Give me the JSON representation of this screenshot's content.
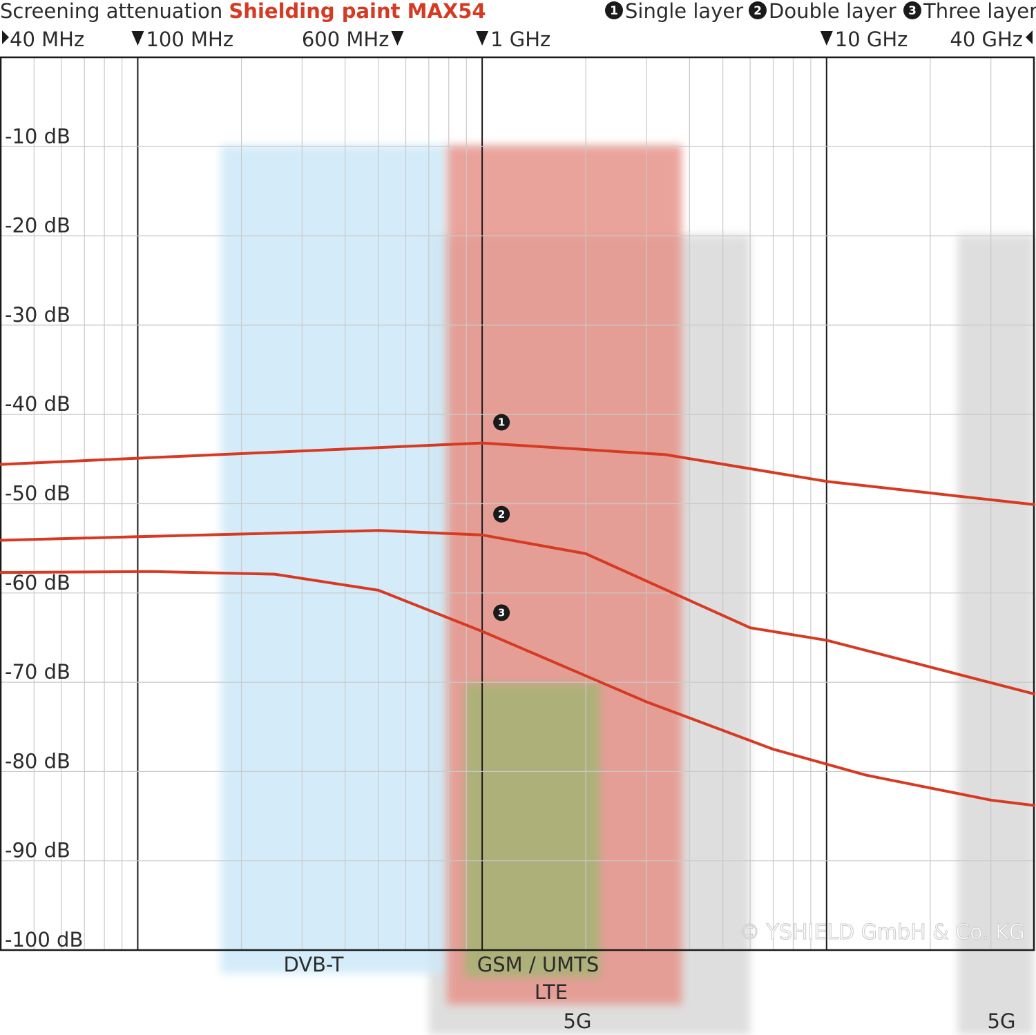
{
  "chart_data": {
    "type": "line",
    "title_prefix": "Screening attenuation ",
    "title_highlight": "Shielding paint MAX54",
    "x_scale": "log",
    "x_range_hz": [
      40000000,
      40000000000
    ],
    "y_range_db": [
      -100,
      0
    ],
    "y_ticks": [
      -10,
      -20,
      -30,
      -40,
      -50,
      -60,
      -70,
      -80,
      -90,
      -100
    ],
    "y_tick_labels": [
      "-10 dB",
      "-20 dB",
      "-30 dB",
      "-40 dB",
      "-50 dB",
      "-60 dB",
      "-70 dB",
      "-80 dB",
      "-90 dB",
      "-100 dB"
    ],
    "freq_markers": [
      {
        "label": "40 MHz",
        "hz": 40000000,
        "arrow": "right-left"
      },
      {
        "label": "100 MHz",
        "hz": 100000000,
        "arrow": "down-left"
      },
      {
        "label": "600 MHz",
        "hz": 600000000,
        "arrow": "down-right"
      },
      {
        "label": "1 GHz",
        "hz": 1000000000,
        "arrow": "down-left"
      },
      {
        "label": "10 GHz",
        "hz": 10000000000,
        "arrow": "down-left"
      },
      {
        "label": "40 GHz",
        "hz": 40000000000,
        "arrow": "left-right"
      }
    ],
    "legend": [
      {
        "num": "1",
        "label": "Single layer"
      },
      {
        "num": "2",
        "label": "Double layer"
      },
      {
        "num": "3",
        "label": "Three layer"
      }
    ],
    "series": [
      {
        "num": "1",
        "color": "#d63a22",
        "points": [
          [
            40000000,
            -45.6
          ],
          [
            100000000,
            -44.9
          ],
          [
            1000000000,
            -43.2
          ],
          [
            3400000000,
            -44.5
          ],
          [
            10000000000,
            -47.5
          ],
          [
            40000000000,
            -50.1
          ]
        ]
      },
      {
        "num": "2",
        "color": "#d63a22",
        "points": [
          [
            40000000,
            -54.1
          ],
          [
            100000000,
            -53.7
          ],
          [
            500000000,
            -53.0
          ],
          [
            1000000000,
            -53.5
          ],
          [
            2000000000,
            -55.6
          ],
          [
            6000000000,
            -63.9
          ],
          [
            10000000000,
            -65.3
          ],
          [
            40000000000,
            -71.3
          ]
        ]
      },
      {
        "num": "3",
        "color": "#d63a22",
        "points": [
          [
            40000000,
            -57.7
          ],
          [
            110000000,
            -57.6
          ],
          [
            250000000,
            -57.9
          ],
          [
            500000000,
            -59.7
          ],
          [
            1000000000,
            -64.3
          ],
          [
            3000000000,
            -72.2
          ],
          [
            7000000000,
            -77.5
          ],
          [
            13000000000,
            -80.4
          ],
          [
            30000000000,
            -83.2
          ],
          [
            40000000000,
            -83.8
          ]
        ]
      }
    ],
    "bands": [
      {
        "label": "DVB-T",
        "from_hz": 174000000,
        "to_hz": 790000000,
        "color": "#cde9f8"
      },
      {
        "label": "GSM / UMTS",
        "from_hz": 890000000,
        "to_hz": 2200000000,
        "color": "#9bb86f"
      },
      {
        "label": "LTE",
        "from_hz": 790000000,
        "to_hz": 3800000000,
        "color": "#e6948a"
      },
      {
        "label": "5G",
        "from_hz": 700000000,
        "to_hz": 6000000000,
        "color": "#d9d9d9"
      },
      {
        "label": "5G",
        "from_hz": 24000000000,
        "to_hz": 40000000000,
        "color": "#d9d9d9"
      }
    ],
    "watermark": "© YSHIELD GmbH & Co. KG",
    "grid": true
  }
}
